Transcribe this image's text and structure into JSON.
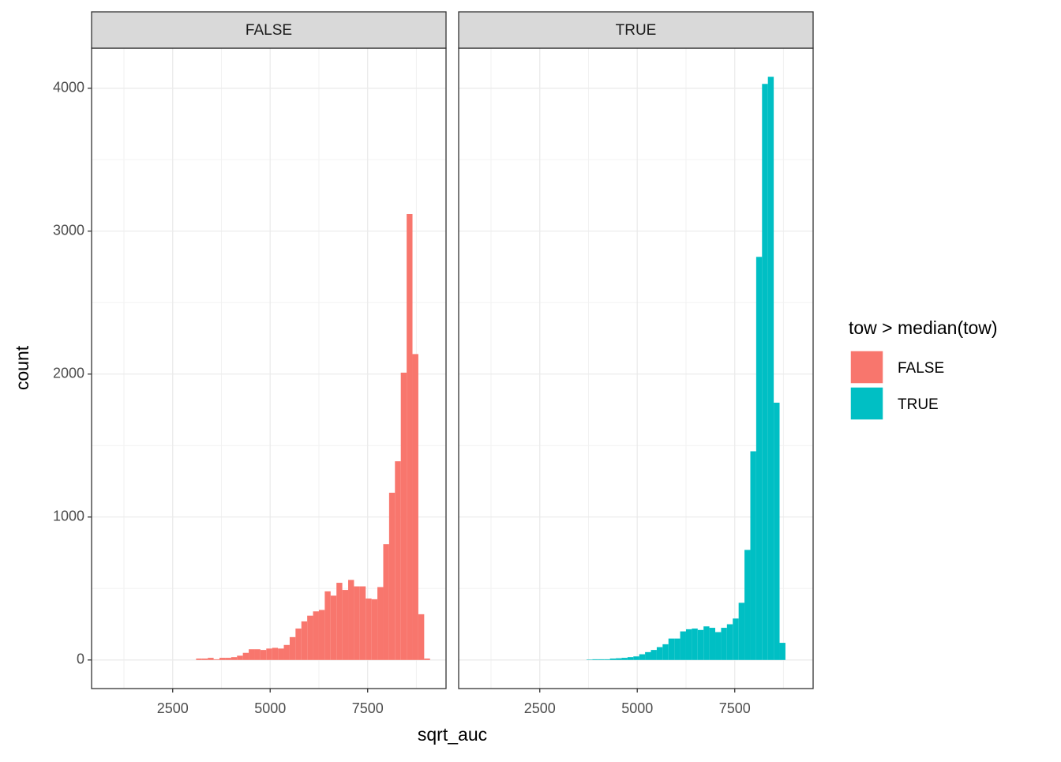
{
  "chart_data": {
    "type": "histogram",
    "x_label": "sqrt_auc",
    "y_label": "count",
    "legend_title": "tow > median(tow)",
    "legend_position": "right",
    "facet": true,
    "grid": true,
    "bins": [
      3100,
      3250,
      3400,
      3550,
      3700,
      3850,
      4000,
      4150,
      4300,
      4450,
      4600,
      4750,
      4900,
      5050,
      5200,
      5350,
      5500,
      5650,
      5800,
      5950,
      6100,
      6250,
      6400,
      6550,
      6700,
      6850,
      7000,
      7150,
      7300,
      7450,
      7600,
      7750,
      7900,
      8050,
      8200,
      8350,
      8500,
      8650,
      8800,
      8950,
      9100
    ],
    "series": [
      {
        "name": "FALSE",
        "color": "#f8766d",
        "values": [
          10,
          10,
          15,
          5,
          15,
          15,
          20,
          30,
          50,
          75,
          75,
          70,
          80,
          85,
          80,
          105,
          160,
          220,
          270,
          310,
          340,
          350,
          480,
          450,
          540,
          490,
          560,
          515,
          515,
          430,
          425,
          510,
          810,
          1170,
          1390,
          2010,
          3120,
          2140,
          320,
          10
        ]
      },
      {
        "name": "TRUE",
        "color": "#00bfc4",
        "values": [
          0,
          0,
          0,
          0,
          3,
          5,
          5,
          5,
          10,
          12,
          15,
          20,
          25,
          40,
          55,
          70,
          90,
          110,
          150,
          150,
          200,
          215,
          220,
          210,
          235,
          225,
          195,
          225,
          250,
          290,
          400,
          770,
          1460,
          2820,
          4030,
          4080,
          1800,
          120,
          0,
          0
        ]
      }
    ],
    "xlim": [
      420,
      9510
    ],
    "xticks": [
      2500,
      5000,
      7500
    ],
    "xminorticks": [
      1250,
      3750,
      6250,
      8750
    ],
    "ylim": [
      -200,
      4280
    ],
    "yticks": [
      0,
      1000,
      2000,
      3000,
      4000
    ],
    "yminorticks": [
      500,
      1500,
      2500,
      3500
    ]
  }
}
